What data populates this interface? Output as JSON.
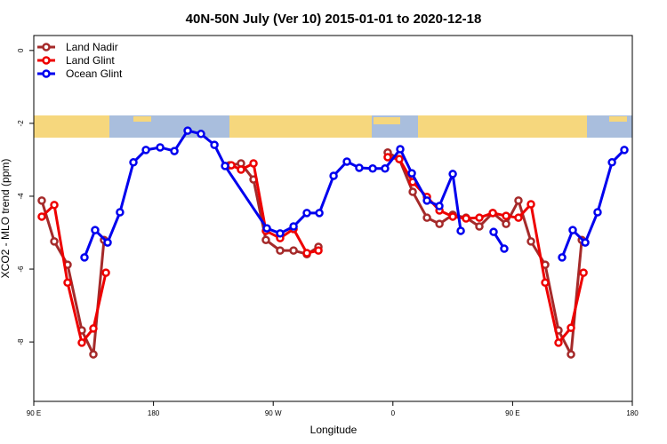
{
  "chart_data": {
    "type": "line",
    "title": "40N-50N July (Ver 10)   2015-01-01 to 2020-12-18",
    "x_label": "Longitude",
    "y_label": "XCO2 - MLO trend (ppm)",
    "xlim": [
      90,
      540
    ],
    "ylim": [
      -9.63,
      0.41
    ],
    "xticks": [
      {
        "value": 90,
        "label": "90 E"
      },
      {
        "value": 180,
        "label": "180"
      },
      {
        "value": 270,
        "label": "90 W"
      },
      {
        "value": 360,
        "label": "0"
      },
      {
        "value": 450,
        "label": "90 E"
      },
      {
        "value": 540,
        "label": "180"
      }
    ],
    "yticks": [
      0,
      -2,
      -4,
      -6,
      -8
    ],
    "legend": "top-left",
    "series": [
      {
        "name": "Land Nadir",
        "color": "#a52a2a",
        "x": [
          96.0,
          105.4,
          115.4,
          126.1,
          134.8,
          142.8,
          null,
          237.1,
          245.8,
          255.2,
          264.5,
          275.2,
          285.3,
          295.3,
          304.0,
          null,
          356.1,
          364.8,
          374.9,
          385.6,
          395.0,
          405.0,
          415.0,
          425.0,
          435.1,
          445.1,
          454.4,
          463.8,
          474.5,
          484.5,
          493.9,
          502.0
        ],
        "values": [
          -4.12,
          -5.24,
          -5.88,
          -7.68,
          -8.34,
          -5.2,
          null,
          -3.15,
          -3.1,
          -3.54,
          -5.2,
          -5.49,
          -5.49,
          -5.59,
          -5.39,
          null,
          -2.8,
          -2.98,
          -3.88,
          -4.59,
          -4.76,
          -4.51,
          -4.59,
          -4.83,
          -4.46,
          -4.76,
          -4.12,
          -5.24,
          -5.88,
          -7.68,
          -8.34,
          -5.2
        ]
      },
      {
        "name": "Land Glint",
        "color": "#ee0000",
        "x": [
          96.0,
          105.4,
          115.4,
          126.1,
          134.8,
          144.2,
          null,
          238.5,
          245.8,
          255.2,
          264.5,
          275.2,
          285.3,
          295.3,
          304.0,
          null,
          356.1,
          364.8,
          374.9,
          385.6,
          395.0,
          405.0,
          415.0,
          425.0,
          435.1,
          445.1,
          454.4,
          463.8,
          474.5,
          484.5,
          493.9,
          503.3
        ],
        "values": [
          -4.56,
          -4.24,
          -6.37,
          -8.02,
          -7.63,
          -6.1,
          null,
          -3.15,
          -3.27,
          -3.1,
          -4.95,
          -5.15,
          -4.9,
          -5.56,
          -5.49,
          null,
          -2.93,
          -2.98,
          -3.61,
          -4.02,
          -4.39,
          -4.56,
          -4.61,
          -4.59,
          -4.46,
          -4.54,
          -4.59,
          -4.22,
          -6.37,
          -8.02,
          -7.61,
          -6.1
        ]
      },
      {
        "name": "Ocean Glint",
        "color": "#0000ee",
        "x": [
          128.1,
          136.1,
          145.5,
          154.8,
          164.9,
          174.3,
          185.0,
          195.7,
          205.7,
          215.7,
          225.8,
          233.8,
          265.2,
          275.2,
          285.3,
          295.3,
          304.7,
          315.4,
          325.4,
          334.7,
          344.8,
          354.1,
          365.5,
          374.2,
          385.6,
          394.9,
          405.0,
          411.0,
          null,
          435.7,
          443.7,
          null,
          487.2,
          495.2,
          504.6,
          513.9,
          524.7,
          534.0
        ],
        "values": [
          -5.68,
          -4.93,
          -5.27,
          -4.44,
          -3.07,
          -2.73,
          -2.66,
          -2.76,
          -2.2,
          -2.29,
          -2.59,
          -3.17,
          -4.88,
          -5.02,
          -4.83,
          -4.46,
          -4.46,
          -3.44,
          -3.05,
          -3.22,
          -3.24,
          -3.24,
          -2.71,
          -3.37,
          -4.12,
          -4.27,
          -3.39,
          -4.95,
          null,
          -4.98,
          -5.44,
          null,
          -5.68,
          -4.93,
          -5.27,
          -4.44,
          -3.07,
          -2.73
        ]
      }
    ]
  }
}
